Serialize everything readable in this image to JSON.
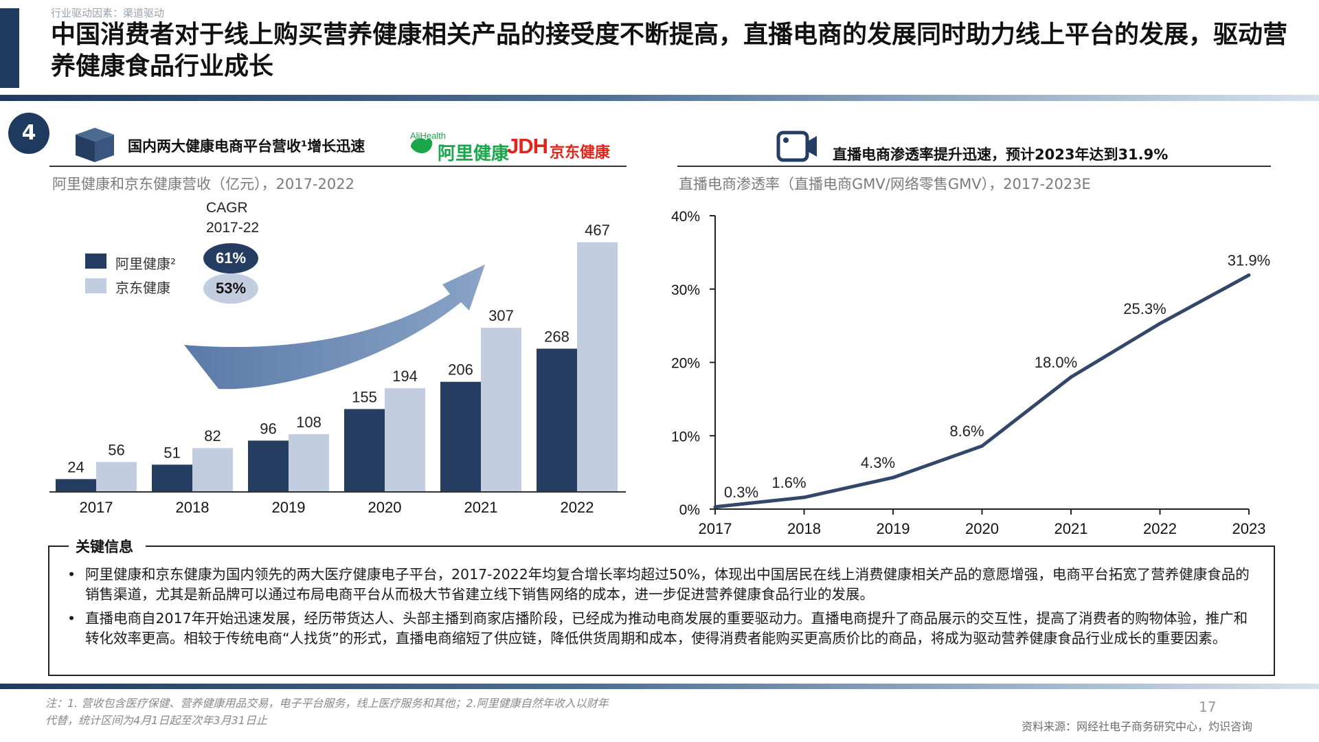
{
  "header": {
    "breadcrumb": "行业驱动因素：渠道驱动",
    "title": "中国消费者对于线上购买营养健康相关产品的接受度不断提高，直播电商的发展同时助力线上平台的发展，驱动营养健康食品行业成长"
  },
  "badge": "4",
  "left": {
    "heading": "国内两大健康电商平台营收¹增长迅速",
    "logo_ali_en": "AliHealth",
    "logo_ali_cn": "阿里健康",
    "logo_jd_en": "JDH",
    "logo_jd_cn": "京东健康",
    "caption": "阿里健康和京东健康营收（亿元），2017-2022",
    "cagr_label_1": "CAGR",
    "cagr_label_2": "2017-22",
    "legend": [
      {
        "label": "阿里健康²",
        "cagr": "61%",
        "color": "#253d61"
      },
      {
        "label": "京东健康",
        "cagr": "53%",
        "color": "#c3cde0"
      }
    ]
  },
  "right": {
    "heading": "直播电商渗透率提升迅速，预计2023年达到31.9%",
    "caption": "直播电商渗透率（直播电商GMV/网络零售GMV），2017-2023E"
  },
  "chart_data": [
    {
      "type": "bar",
      "title": "阿里健康和京东健康营收（亿元），2017-2022",
      "categories": [
        "2017",
        "2018",
        "2019",
        "2020",
        "2021",
        "2022"
      ],
      "series": [
        {
          "name": "阿里健康²",
          "values": [
            24,
            51,
            96,
            155,
            206,
            268
          ],
          "color": "#253d61"
        },
        {
          "name": "京东健康",
          "values": [
            56,
            82,
            108,
            194,
            307,
            467
          ],
          "color": "#c3cde0"
        }
      ],
      "ylim": [
        0,
        500
      ],
      "grid": false
    },
    {
      "type": "line",
      "title": "直播电商渗透率（直播电商GMV/网络零售GMV），2017-2023E",
      "x": [
        "2017",
        "2018",
        "2019",
        "2020",
        "2021",
        "2022",
        "2023"
      ],
      "series": [
        {
          "values": [
            0.3,
            1.6,
            4.3,
            8.6,
            18.0,
            25.3,
            31.9
          ],
          "labels": [
            "0.3%",
            "1.6%",
            "4.3%",
            "8.6%",
            "18.0%",
            "25.3%",
            "31.9%"
          ],
          "color": "#33476b"
        }
      ],
      "yticks": [
        "0%",
        "10%",
        "20%",
        "30%",
        "40%"
      ],
      "ylim": [
        0,
        40
      ],
      "grid": false
    }
  ],
  "key_info": {
    "title": "关键信息",
    "bullets": [
      "阿里健康和京东健康为国内领先的两大医疗健康电子平台，2017-2022年均复合增长率均超过50%，体现出中国居民在线上消费健康相关产品的意愿增强，电商平台拓宽了营养健康食品的销售渠道，尤其是新品牌可以通过布局电商平台从而极大节省建立线下销售网络的成本，进一步促进营养健康食品行业的发展。",
      "直播电商自2017年开始迅速发展，经历带货达人、头部主播到商家店播阶段，已经成为推动电商发展的重要驱动力。直播电商提升了商品展示的交互性，提高了消费者的购物体验，推广和转化效率更高。相较于传统电商“人找货”的形式，直播电商缩短了供应链，降低供货周期和成本，使得消费者能购买更高质价比的商品，将成为驱动营养健康食品行业成长的重要因素。"
    ]
  },
  "footer": {
    "note": "注：1. 营收包含医疗保健、营养健康用品交易，电子平台服务，线上医疗服务和其他；2.阿里健康自然年收入以财年代替，统计区间为4月1日起至次年3月31日止",
    "page": "17",
    "source": "资料来源：网经社电子商务研究中心，灼识咨询"
  }
}
